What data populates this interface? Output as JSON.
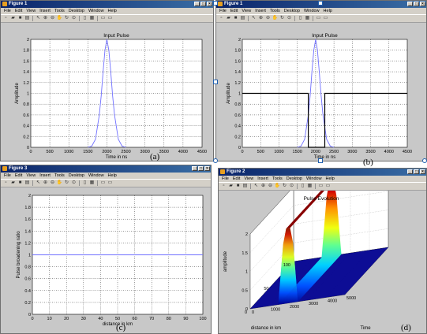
{
  "windows": [
    {
      "title": "Figure 1",
      "menu": [
        "File",
        "Edit",
        "View",
        "Insert",
        "Tools",
        "Desktop",
        "Window",
        "Help"
      ],
      "caption": "(a)",
      "chart": {
        "type": "line",
        "title": "Input Pulse",
        "xlabel": "Time in ns",
        "ylabel": "Amplitude",
        "xlim": [
          0,
          4500
        ],
        "ylim": [
          0,
          2
        ],
        "xticks": [
          "0",
          "500",
          "1000",
          "1500",
          "2000",
          "2500",
          "3000",
          "3500",
          "4000",
          "4500"
        ],
        "yticks": [
          "0",
          "0.2",
          "0.4",
          "0.6",
          "0.8",
          "1",
          "1.2",
          "1.4",
          "1.6",
          "1.8",
          "2"
        ],
        "grid": true
      }
    },
    {
      "title": "Figure 1",
      "menu": [
        "File",
        "Edit",
        "View",
        "Insert",
        "Tools",
        "Desktop",
        "Window",
        "Help"
      ],
      "caption": "(b)",
      "chart": {
        "type": "line",
        "title": "Input Pulse",
        "xlabel": "Time in ns",
        "ylabel": "Amplitude",
        "xlim": [
          0,
          4500
        ],
        "ylim": [
          0,
          2
        ],
        "xticks": [
          "0",
          "500",
          "1000",
          "1500",
          "2000",
          "2500",
          "3000",
          "3500",
          "4000",
          "4500"
        ],
        "yticks": [
          "0",
          "0.2",
          "0.4",
          "0.6",
          "0.8",
          "1",
          "1.2",
          "1.4",
          "1.6",
          "1.8",
          "2"
        ],
        "grid": true
      }
    },
    {
      "title": "Figure 3",
      "menu": [
        "File",
        "Edit",
        "View",
        "Insert",
        "Tools",
        "Desktop",
        "Window",
        "Help"
      ],
      "caption": "(c)",
      "chart": {
        "type": "line",
        "xlabel": "distance in km",
        "ylabel": "Pulse broadening ratio",
        "xlim": [
          0,
          100
        ],
        "ylim": [
          0,
          2
        ],
        "xticks": [
          "0",
          "10",
          "20",
          "30",
          "40",
          "50",
          "60",
          "70",
          "80",
          "90",
          "100"
        ],
        "yticks": [
          "0",
          "0.2",
          "0.4",
          "0.6",
          "0.8",
          "1",
          "1.2",
          "1.4",
          "1.6",
          "1.8",
          "2"
        ],
        "grid": true
      }
    },
    {
      "title": "Figure 2",
      "menu": [
        "File",
        "Edit",
        "View",
        "Insert",
        "Tools",
        "Desktop",
        "Window",
        "Help"
      ],
      "caption": "(d)",
      "chart": {
        "type": "surface",
        "title": "Pulse Evolution",
        "xlabel": "Time",
        "ylabel": "distance in km",
        "zlabel": "amplitude",
        "zticks": [
          "0",
          "0.5",
          "1",
          "1.5",
          "2"
        ],
        "distance_ticks": [
          "0",
          "50",
          "100"
        ],
        "time_ticks": [
          "0",
          "1000",
          "2000",
          "3000",
          "4000",
          "5000"
        ]
      }
    }
  ],
  "chart_data": [
    {
      "type": "line",
      "title": "Input Pulse",
      "xlabel": "Time in ns",
      "ylabel": "Amplitude",
      "xlim": [
        0,
        4500
      ],
      "ylim": [
        0,
        2
      ],
      "grid": true,
      "series": [
        {
          "color": "#7070ff",
          "x": [
            1500,
            1600,
            1700,
            1800,
            1850,
            1900,
            1950,
            2000,
            2050,
            2100,
            2150,
            2200,
            2300,
            2400,
            2500
          ],
          "y": [
            0.0,
            0.02,
            0.15,
            0.6,
            0.95,
            1.4,
            1.8,
            2.0,
            1.8,
            1.4,
            0.95,
            0.6,
            0.15,
            0.02,
            0.0
          ]
        }
      ]
    },
    {
      "type": "line",
      "title": "Input Pulse",
      "xlabel": "Time in ns",
      "ylabel": "Amplitude",
      "xlim": [
        0,
        4500
      ],
      "ylim": [
        0,
        2
      ],
      "grid": true,
      "series": [
        {
          "color": "#7070ff",
          "x": [
            1500,
            1600,
            1700,
            1800,
            1850,
            1900,
            1950,
            2000,
            2050,
            2100,
            2150,
            2200,
            2300,
            2400,
            2500
          ],
          "y": [
            0.0,
            0.02,
            0.15,
            0.6,
            0.95,
            1.4,
            1.8,
            2.0,
            1.8,
            1.4,
            0.95,
            0.6,
            0.15,
            0.02,
            0.0
          ]
        },
        {
          "color": "#000000",
          "x": [
            0,
            1800,
            1800,
            2250,
            2250,
            4500
          ],
          "y": [
            1,
            1,
            0,
            0,
            1,
            1
          ]
        }
      ]
    },
    {
      "type": "line",
      "xlabel": "distance in km",
      "ylabel": "Pulse broadening ratio",
      "xlim": [
        0,
        100
      ],
      "ylim": [
        0,
        2
      ],
      "grid": true,
      "series": [
        {
          "color": "#7070ff",
          "x": [
            0,
            100
          ],
          "y": [
            1,
            1
          ]
        }
      ]
    },
    {
      "type": "surface",
      "title": "Pulse Evolution",
      "xlabel": "Time",
      "ylabel": "distance in km",
      "zlabel": "amplitude",
      "xlim": [
        0,
        5000
      ],
      "ylim": [
        0,
        100
      ],
      "zlim": [
        0,
        2
      ],
      "peak_amplitude": 2,
      "pulse_center_time": 2000,
      "colormap": [
        "#00008f",
        "#0050ff",
        "#00d0ff",
        "#60ff90",
        "#f0ff10",
        "#ff9000",
        "#d00000",
        "#800000"
      ]
    }
  ]
}
